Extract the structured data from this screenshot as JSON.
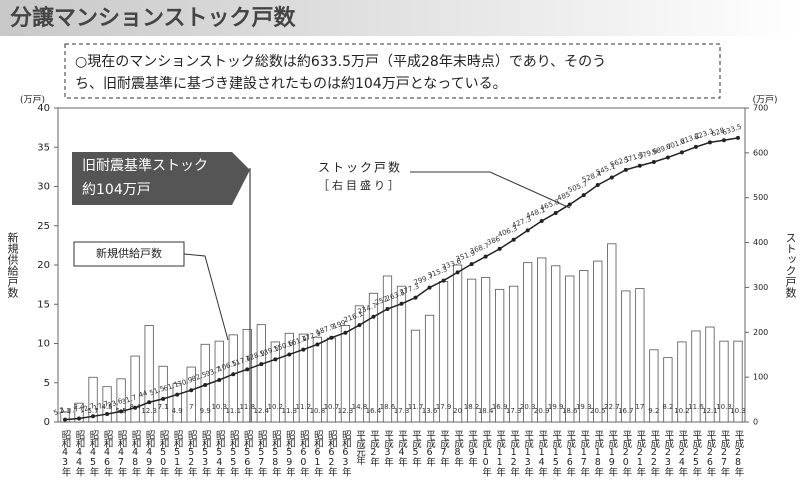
{
  "chart_data": {
    "type": "bar_line",
    "title": "分譲マンションストック戸数",
    "summary": [
      "○現在のマンションストック総数は約633.5万戸（平成28年末時点）であり、そのう",
      "ち、旧耐震基準に基づき建設されたものは約104万戸となっている。"
    ],
    "y_unit": "(万戸)",
    "y2_unit": "(万戸)",
    "ylabel": "新規供給戸数",
    "y2label": "ストック戸数",
    "annotations": [
      "旧耐震基準ストック",
      "約104万戸",
      "新規供給戸数",
      "ストック戸数",
      "［右目盛り］"
    ],
    "categories": [
      "昭和43年",
      "昭和44年",
      "昭和45年",
      "昭和46年",
      "昭和47年",
      "昭和48年",
      "昭和49年",
      "昭和50年",
      "昭和51年",
      "昭和52年",
      "昭和53年",
      "昭和54年",
      "昭和55年",
      "昭和56年",
      "昭和57年",
      "昭和58年",
      "昭和59年",
      "昭和60年",
      "昭和61年",
      "昭和62年",
      "昭和63年",
      "平成元年",
      "平成2年",
      "平成3年",
      "平成4年",
      "平成5年",
      "平成6年",
      "平成7年",
      "平成8年",
      "平成9年",
      "平成10年",
      "平成11年",
      "平成12年",
      "平成13年",
      "平成14年",
      "平成15年",
      "平成16年",
      "平成17年",
      "平成18年",
      "平成19年",
      "平成20年",
      "平成21年",
      "平成22年",
      "平成23年",
      "平成24年",
      "平成25年",
      "平成26年",
      "平成27年",
      "平成28年"
    ],
    "series": [
      {
        "name": "新規供給戸数",
        "kind": "bar",
        "color": "#ffffff",
        "stroke": "#555555",
        "values": [
          1.3,
          2.4,
          5.7,
          4.5,
          5.5,
          8.4,
          12.3,
          7.1,
          4.9,
          7.0,
          9.9,
          10.3,
          11.1,
          11.8,
          12.4,
          10.2,
          11.3,
          11.2,
          10.8,
          10.7,
          12.3,
          14.8,
          16.4,
          18.6,
          17.3,
          11.7,
          13.6,
          17.9,
          20.0,
          18.2,
          18.4,
          16.9,
          17.3,
          20.3,
          20.9,
          19.9,
          18.6,
          19.3,
          20.5,
          22.7,
          16.7,
          17.0,
          9.2,
          8.2,
          10.2,
          11.6,
          12.1,
          10.3,
          10.3
        ]
      },
      {
        "name": "ストック戸数",
        "kind": "line",
        "axis": "y2",
        "color": "#222222",
        "values": [
          5.3,
          7.7,
          12.7,
          17.7,
          23.6,
          31.7,
          44.0,
          51.5,
          61.1,
          70.9,
          82.5,
          93.7,
          106.5,
          117.4,
          128.9,
          139.5,
          150.6,
          161.4,
          172.9,
          187.9,
          199.0,
          216.1,
          234.7,
          252.0,
          263.5,
          277.3,
          299.7,
          315.3,
          333.6,
          351.9,
          368.7,
          386.0,
          406.3,
          427.3,
          448.1,
          465.8,
          485.0,
          505.7,
          528.4,
          545.1,
          562.1,
          571.3,
          579.6,
          589.7,
          601.2,
          613.2,
          623.3,
          628.0,
          633.5
        ]
      }
    ],
    "ylim": [
      0,
      40
    ],
    "yticks": [
      0,
      5,
      10,
      15,
      20,
      25,
      30,
      35,
      40
    ],
    "y2lim": [
      0,
      700
    ],
    "y2ticks": [
      0,
      100,
      200,
      300,
      400,
      500,
      600,
      700
    ]
  }
}
